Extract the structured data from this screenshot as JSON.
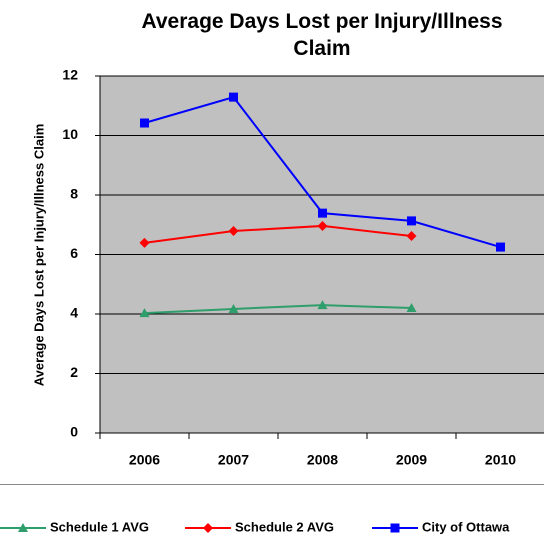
{
  "chart_data": {
    "type": "line",
    "title": "Average Days Lost per Injury/Illness Claim",
    "y_label": "Average Days Lost per Injury/Illness Claim",
    "categories": [
      "2006",
      "2007",
      "2008",
      "2009",
      "2010"
    ],
    "series": [
      {
        "name": "Schedule 1 AVG",
        "color": "#2e9e6a",
        "marker": "triangle",
        "values": [
          4.03,
          4.17,
          4.3,
          4.2,
          null
        ]
      },
      {
        "name": "Schedule 2 AVG",
        "color": "#ff0000",
        "marker": "diamond",
        "values": [
          6.39,
          6.79,
          6.96,
          6.62,
          null
        ]
      },
      {
        "name": "City of Ottawa",
        "color": "#0000ff",
        "marker": "square",
        "values": [
          10.42,
          11.29,
          7.39,
          7.13,
          6.25
        ]
      }
    ],
    "ylim": [
      0,
      12
    ],
    "yticks": [
      0,
      2,
      4,
      6,
      8,
      10,
      12
    ],
    "grid": true,
    "legend": "bottom"
  }
}
